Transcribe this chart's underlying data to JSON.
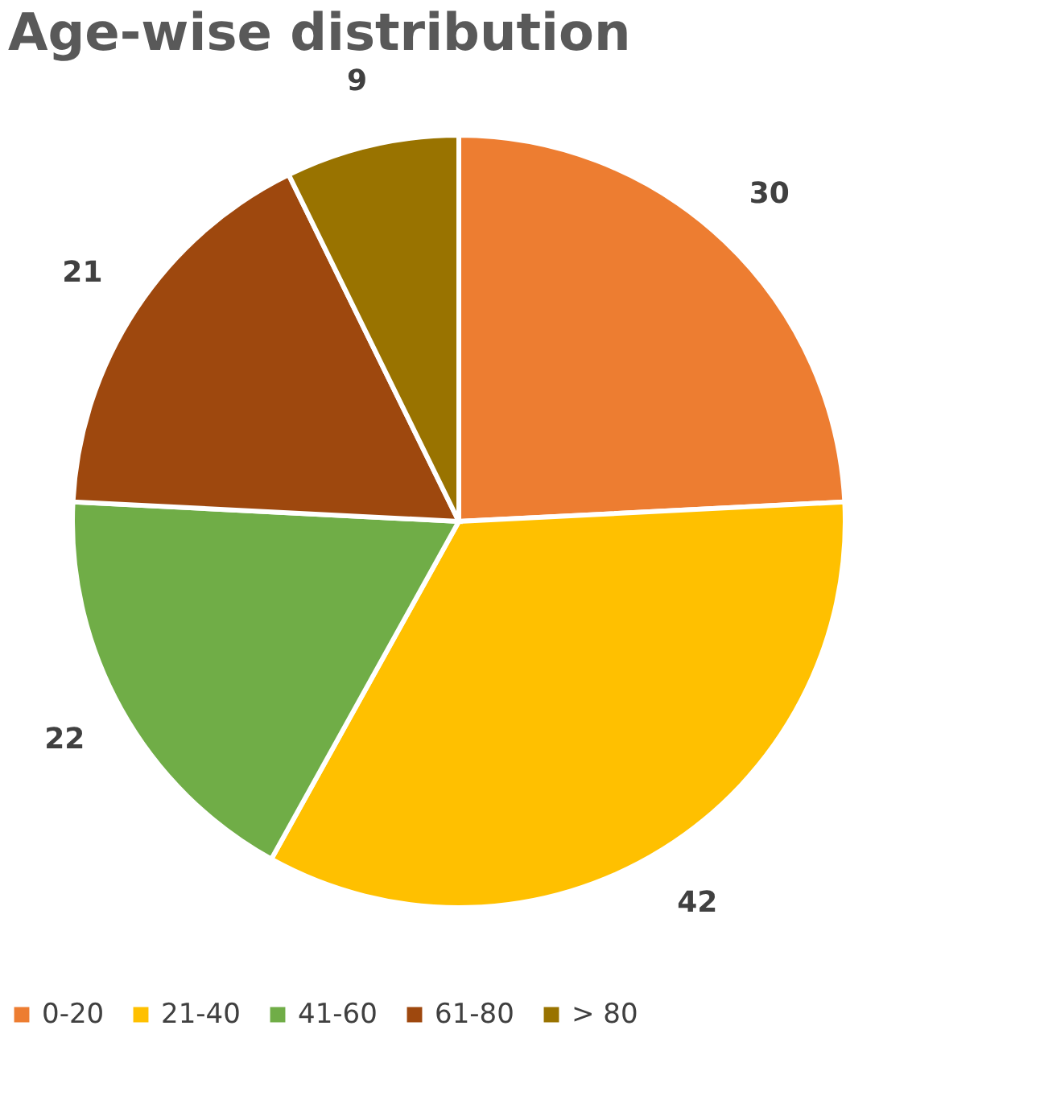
{
  "chart_data": {
    "type": "pie",
    "title": "Age-wise distribution",
    "categories": [
      "0-20",
      "21-40",
      "41-60",
      "61-80",
      "> 80"
    ],
    "values": [
      30,
      42,
      22,
      21,
      9
    ],
    "colors": [
      "#ed7d31",
      "#ffc000",
      "#70ad47",
      "#9e480e",
      "#997300"
    ],
    "data_labels": true,
    "legend": "bottom"
  }
}
